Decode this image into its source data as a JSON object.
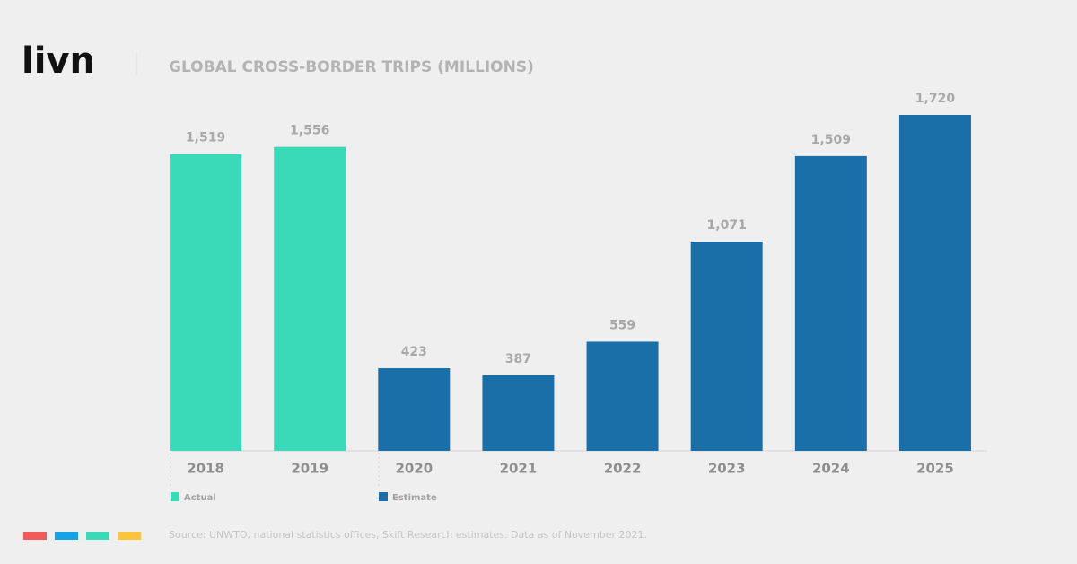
{
  "logo": "livn",
  "chart_data": {
    "type": "bar",
    "title": "GLOBAL CROSS-BORDER TRIPS (MILLIONS)",
    "categories": [
      "2018",
      "2019",
      "2020",
      "2021",
      "2022",
      "2023",
      "2024",
      "2025"
    ],
    "series": [
      {
        "name": "Actual",
        "color": "#3ad9b8",
        "values": [
          1519,
          1556,
          null,
          null,
          null,
          null,
          null,
          null
        ],
        "value_labels": [
          "1,519",
          "1,556",
          null,
          null,
          null,
          null,
          null,
          null
        ]
      },
      {
        "name": "Estimate",
        "color": "#1a6fa8",
        "values": [
          null,
          null,
          423,
          387,
          559,
          1071,
          1509,
          1720
        ],
        "value_labels": [
          null,
          null,
          "423",
          "387",
          "559",
          "1,071",
          "1,509",
          "1,720"
        ]
      }
    ],
    "ylim": [
      0,
      1720
    ],
    "source": "Source: UNWTO, national statistics offices, Skift Research estimates. Data as of November 2021."
  }
}
